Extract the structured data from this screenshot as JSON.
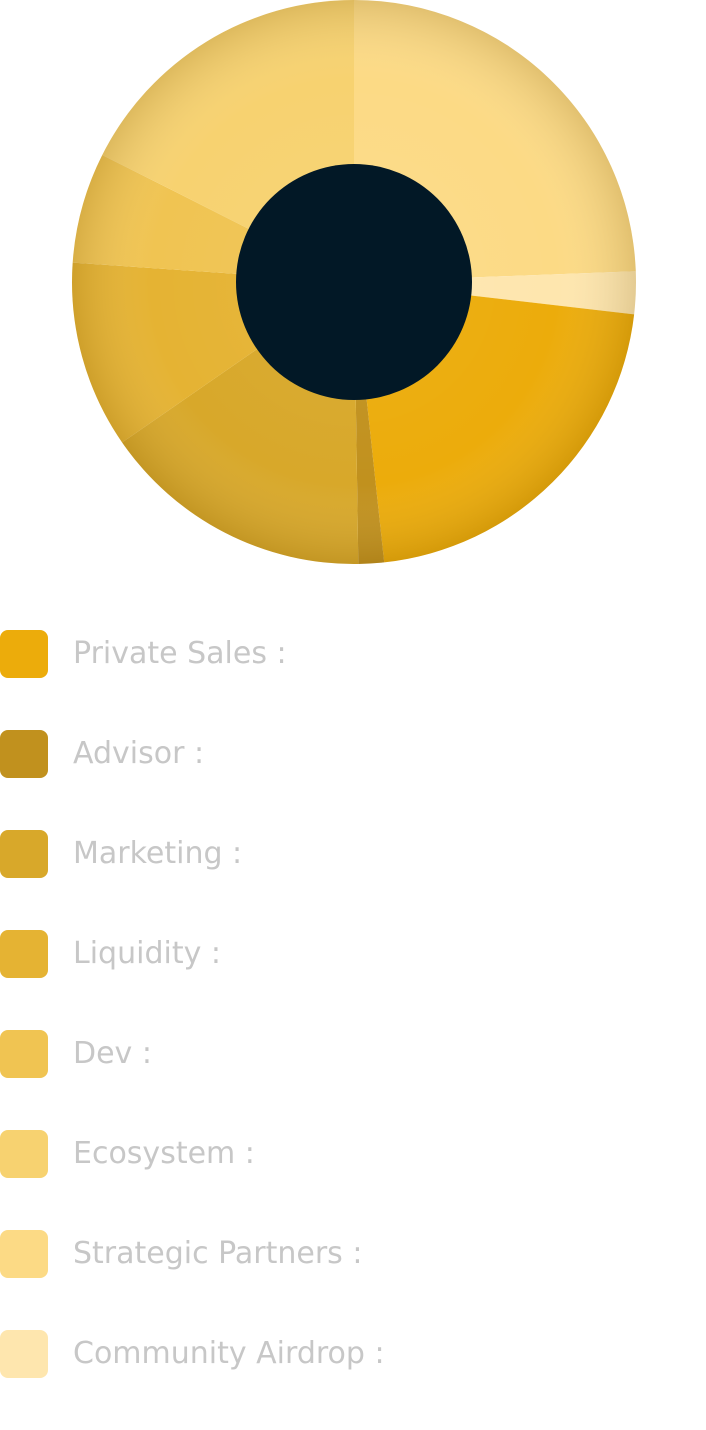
{
  "chart_data": {
    "type": "pie",
    "variant": "donut",
    "title": "",
    "series": [
      {
        "name": "",
        "labels": [
          "Private Sales :",
          "Advisor :",
          "Marketing :",
          "Liquidity :",
          "Dev :",
          "Ecosystem :",
          "Strategic Partners :",
          "Community Airdrop :"
        ],
        "values": [
          22,
          1.5,
          16,
          11,
          6.5,
          18,
          25,
          2.5
        ],
        "unit": "%",
        "colors": [
          "#ECAC0B",
          "#C1911E",
          "#D8A82A",
          "#E5B333",
          "#F0C452",
          "#F7D270",
          "#FCDA85",
          "#FEE6AE"
        ]
      }
    ],
    "start_slice": "Strategic Partners :",
    "direction": "clockwise",
    "center_color": "#021826",
    "legend_position": "bottom-left"
  }
}
